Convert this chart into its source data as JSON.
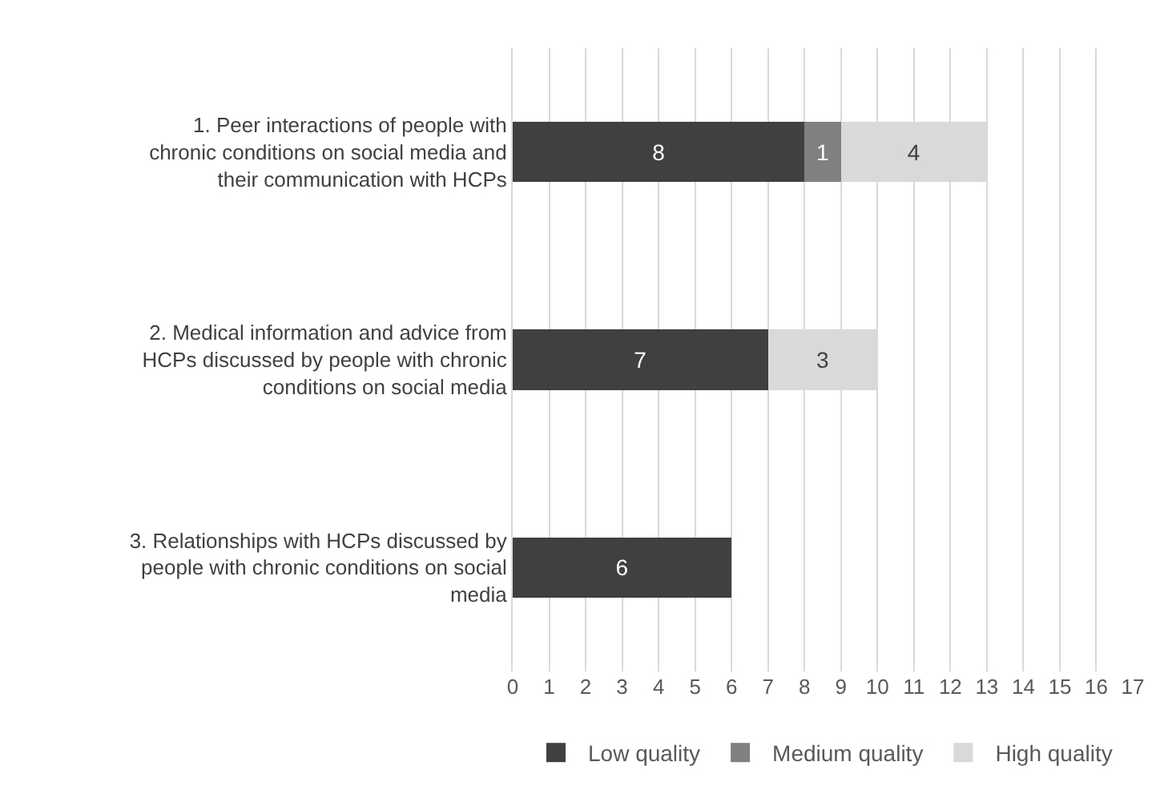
{
  "chart_data": {
    "type": "bar",
    "orientation": "horizontal",
    "stacked": true,
    "categories": [
      "1. Peer interactions of people with chronic conditions on social media and their communication with HCPs",
      "2. Medical information and advice from HCPs discussed by people with chronic conditions on social media",
      "3. Relationships with HCPs discussed by people with chronic conditions on social media"
    ],
    "series": [
      {
        "name": "Low quality",
        "color": "#404040",
        "values": [
          8,
          7,
          6
        ]
      },
      {
        "name": "Medium quality",
        "color": "#808080",
        "values": [
          1,
          null,
          null
        ]
      },
      {
        "name": "High quality",
        "color": "#d9d9d9",
        "values": [
          4,
          3,
          null
        ]
      }
    ],
    "xlim": [
      0,
      17
    ],
    "xticks": [
      0,
      1,
      2,
      3,
      4,
      5,
      6,
      7,
      8,
      9,
      10,
      11,
      12,
      13,
      14,
      15,
      16,
      17
    ],
    "data_labels": true,
    "grid": "x",
    "legend": "bottom"
  }
}
